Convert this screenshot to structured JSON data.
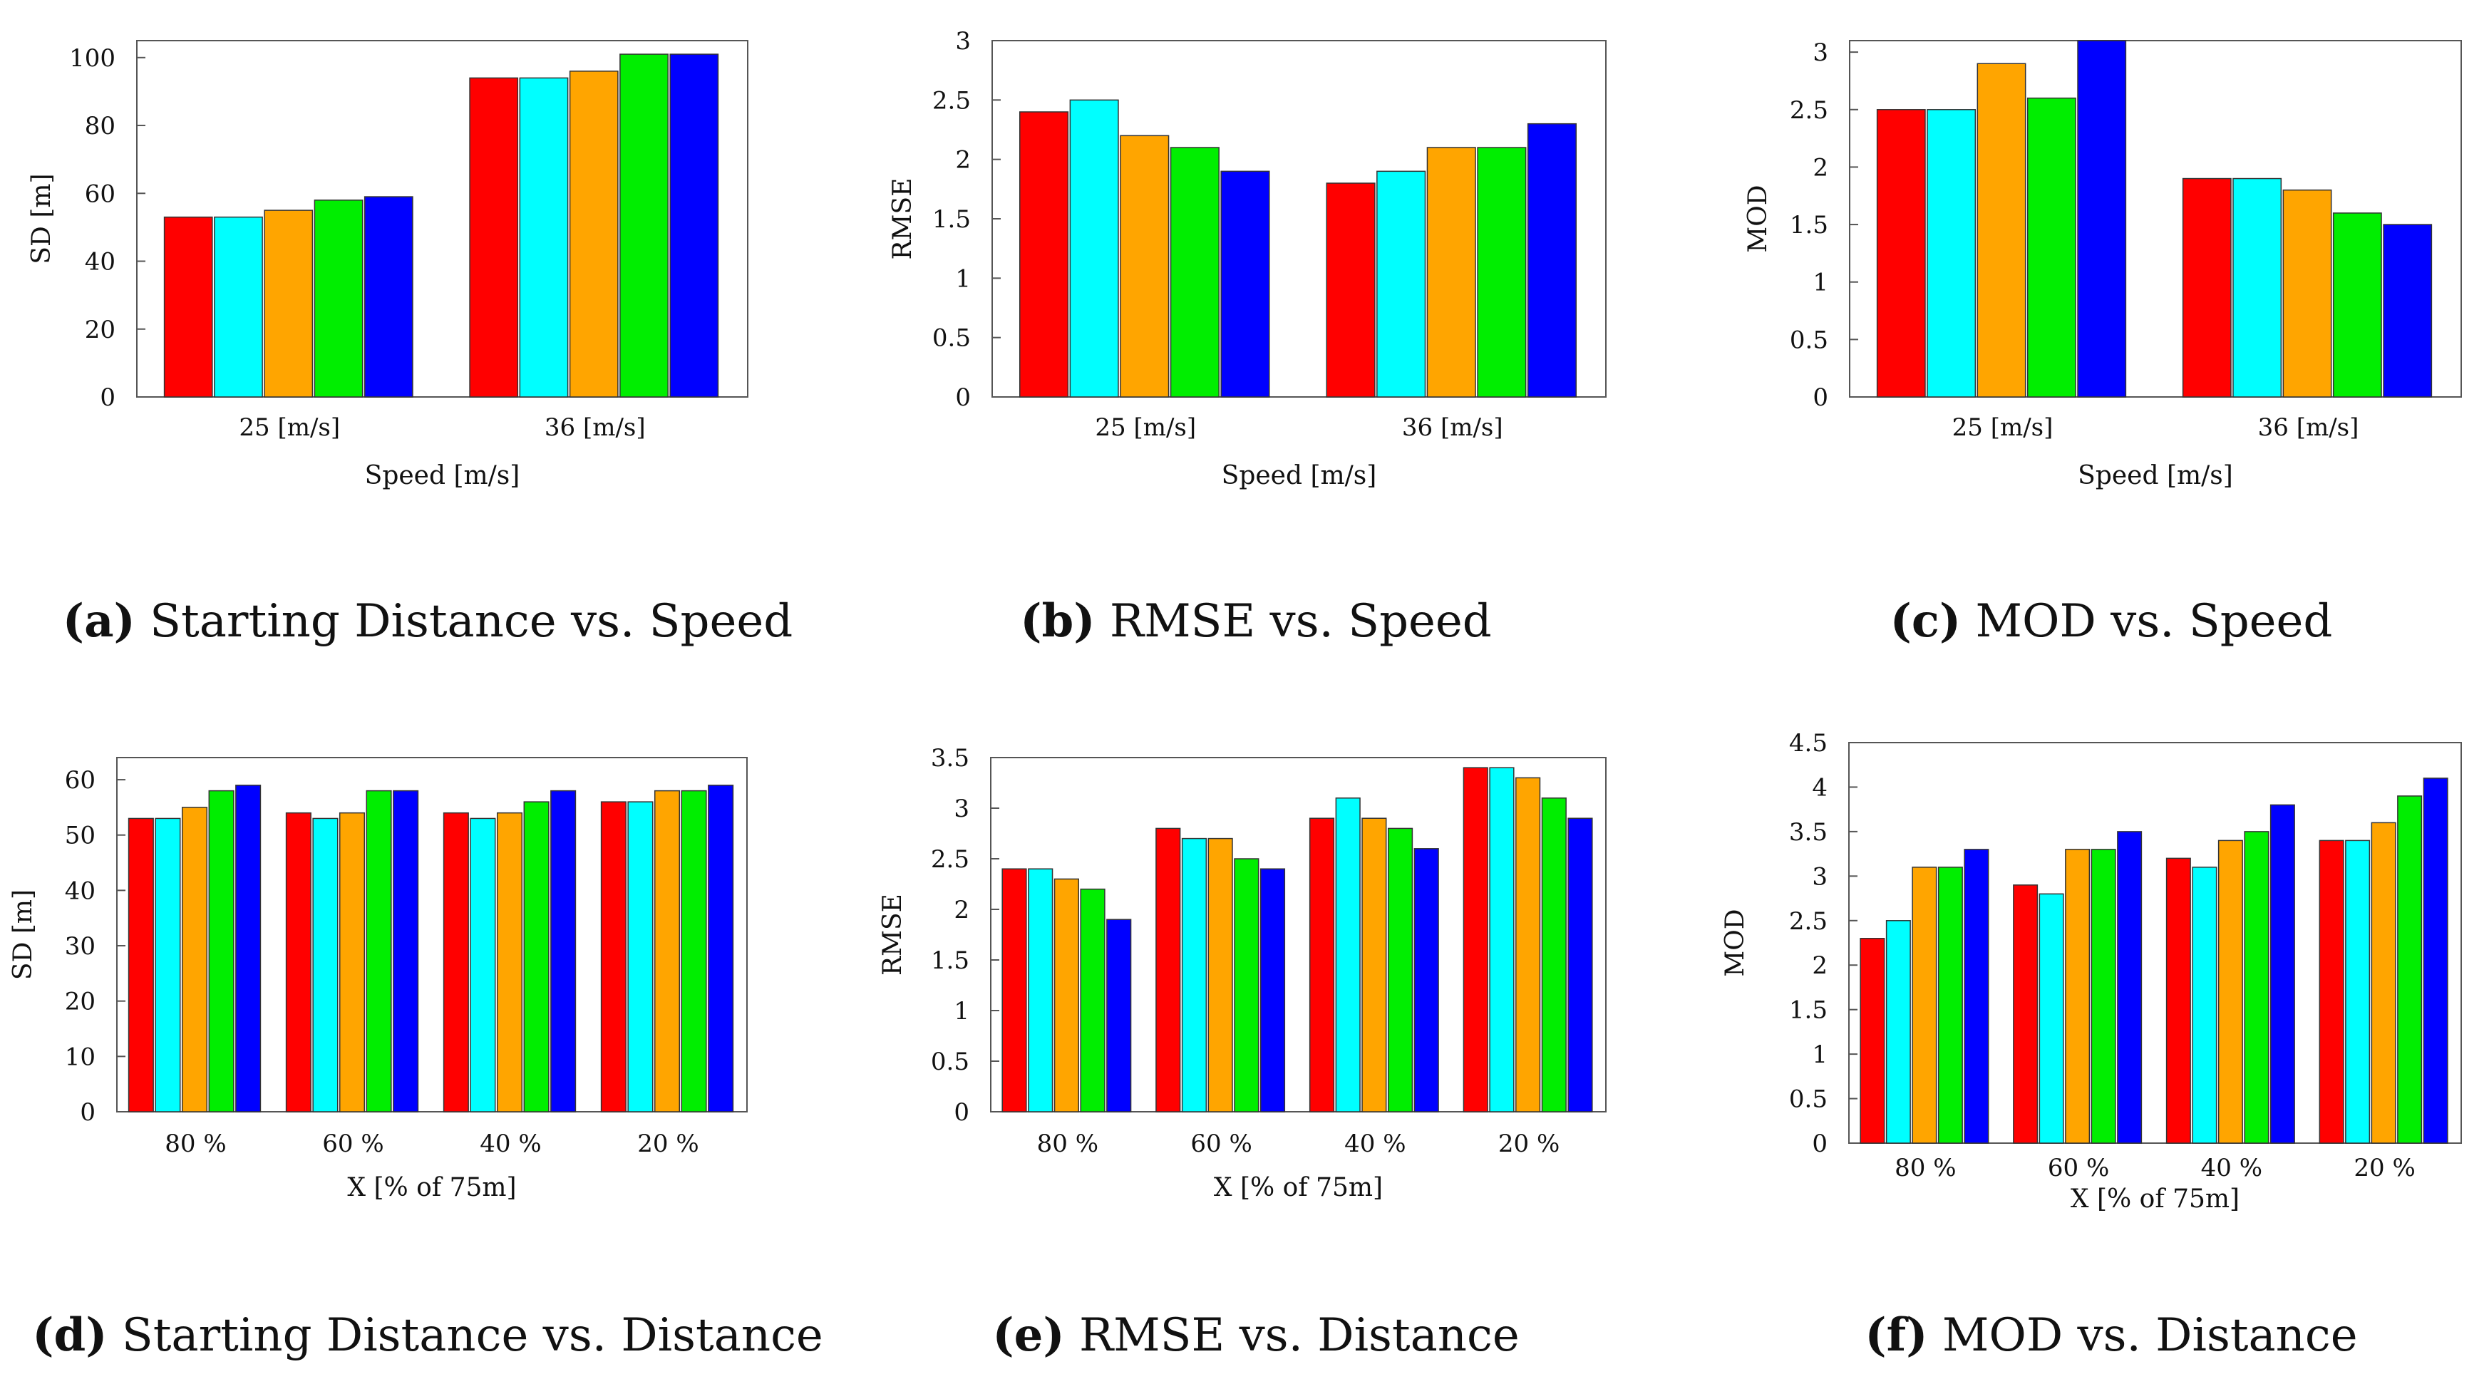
{
  "colors": {
    "series": [
      "#ff0000",
      "#00ffff",
      "#ffa500",
      "#00ee00",
      "#0000ff"
    ],
    "axis": "#555555"
  },
  "chart_data": [
    {
      "id": "a",
      "type": "bar",
      "title": "Starting Distance vs. Speed",
      "caption_label": "(a)",
      "caption_text": "Starting Distance vs. Speed",
      "categories": [
        "25 [m/s]",
        "36 [m/s]"
      ],
      "series_values": [
        [
          53,
          53,
          55,
          58,
          59
        ],
        [
          94,
          94,
          96,
          101,
          101
        ]
      ],
      "ylim": [
        0,
        105
      ],
      "yticks": [
        0,
        20,
        40,
        60,
        80,
        100
      ],
      "ytick_labels": [
        "0",
        "20",
        "40",
        "60",
        "80",
        "100"
      ],
      "xlabel": "Speed [m/s]",
      "ylabel": "SD [m]"
    },
    {
      "id": "b",
      "type": "bar",
      "title": "RMSE vs. Speed",
      "caption_label": "(b)",
      "caption_text": "RMSE vs. Speed",
      "categories": [
        "25 [m/s]",
        "36 [m/s]"
      ],
      "series_values": [
        [
          2.4,
          2.5,
          2.2,
          2.1,
          1.9
        ],
        [
          1.8,
          1.9,
          2.1,
          2.1,
          2.3
        ]
      ],
      "ylim": [
        0,
        3
      ],
      "yticks": [
        0,
        0.5,
        1,
        1.5,
        2,
        2.5,
        3
      ],
      "ytick_labels": [
        "0",
        "0.5",
        "1",
        "1.5",
        "2",
        "2.5",
        "3"
      ],
      "xlabel": "Speed [m/s]",
      "ylabel": "RMSE"
    },
    {
      "id": "c",
      "type": "bar",
      "title": "MOD vs. Speed",
      "caption_label": "(c)",
      "caption_text": "MOD vs. Speed",
      "categories": [
        "25 [m/s]",
        "36 [m/s]"
      ],
      "series_values": [
        [
          2.5,
          2.5,
          2.9,
          2.6,
          3.1
        ],
        [
          1.9,
          1.9,
          1.8,
          1.6,
          1.5
        ]
      ],
      "ylim": [
        0,
        3.1
      ],
      "yticks": [
        0,
        0.5,
        1,
        1.5,
        2,
        2.5,
        3
      ],
      "ytick_labels": [
        "0",
        "0.5",
        "1",
        "1.5",
        "2",
        "2.5",
        "3"
      ],
      "xlabel": "Speed [m/s]",
      "ylabel": "MOD"
    },
    {
      "id": "d",
      "type": "bar",
      "title": "Starting Distance vs. Distance",
      "caption_label": "(d)",
      "caption_text": "Starting Distance vs. Distance",
      "categories": [
        "80 %",
        "60 %",
        "40 %",
        "20 %"
      ],
      "series_values": [
        [
          53,
          53,
          55,
          58,
          59
        ],
        [
          54,
          53,
          54,
          58,
          58
        ],
        [
          54,
          53,
          54,
          56,
          58
        ],
        [
          56,
          56,
          58,
          58,
          59
        ]
      ],
      "ylim": [
        0,
        64
      ],
      "yticks": [
        0,
        10,
        20,
        30,
        40,
        50,
        60
      ],
      "ytick_labels": [
        "0",
        "10",
        "20",
        "30",
        "40",
        "50",
        "60"
      ],
      "xlabel": "X [% of 75m]",
      "ylabel": "SD [m]"
    },
    {
      "id": "e",
      "type": "bar",
      "title": "RMSE vs. Distance",
      "caption_label": "(e)",
      "caption_text": "RMSE vs. Distance",
      "categories": [
        "80 %",
        "60 %",
        "40 %",
        "20 %"
      ],
      "series_values": [
        [
          2.4,
          2.4,
          2.3,
          2.2,
          1.9
        ],
        [
          2.8,
          2.7,
          2.7,
          2.5,
          2.4
        ],
        [
          2.9,
          3.1,
          2.9,
          2.8,
          2.6
        ],
        [
          3.4,
          3.4,
          3.3,
          3.1,
          2.9
        ]
      ],
      "ylim": [
        0,
        3.5
      ],
      "yticks": [
        0,
        0.5,
        1,
        1.5,
        2,
        2.5,
        3,
        3.5
      ],
      "ytick_labels": [
        "0",
        "0.5",
        "1",
        "1.5",
        "2",
        "2.5",
        "3",
        "3.5"
      ],
      "xlabel": "X [% of 75m]",
      "ylabel": "RMSE"
    },
    {
      "id": "f",
      "type": "bar",
      "title": "MOD vs. Distance",
      "caption_label": "(f)",
      "caption_text": "MOD vs. Distance",
      "categories": [
        "80 %",
        "60 %",
        "40 %",
        "20 %"
      ],
      "series_values": [
        [
          2.3,
          2.5,
          3.1,
          3.1,
          3.3
        ],
        [
          2.9,
          2.8,
          3.3,
          3.3,
          3.5
        ],
        [
          3.2,
          3.1,
          3.4,
          3.5,
          3.8
        ],
        [
          3.4,
          3.4,
          3.6,
          3.9,
          4.1
        ]
      ],
      "ylim": [
        0,
        4.5
      ],
      "yticks": [
        0,
        0.5,
        1,
        1.5,
        2,
        2.5,
        3,
        3.5,
        4,
        4.5
      ],
      "ytick_labels": [
        "0",
        "0.5",
        "1",
        "1.5",
        "2",
        "2.5",
        "3",
        "3.5",
        "4",
        "4.5"
      ],
      "xlabel": "X [% of 75m]",
      "ylabel": "MOD"
    }
  ]
}
